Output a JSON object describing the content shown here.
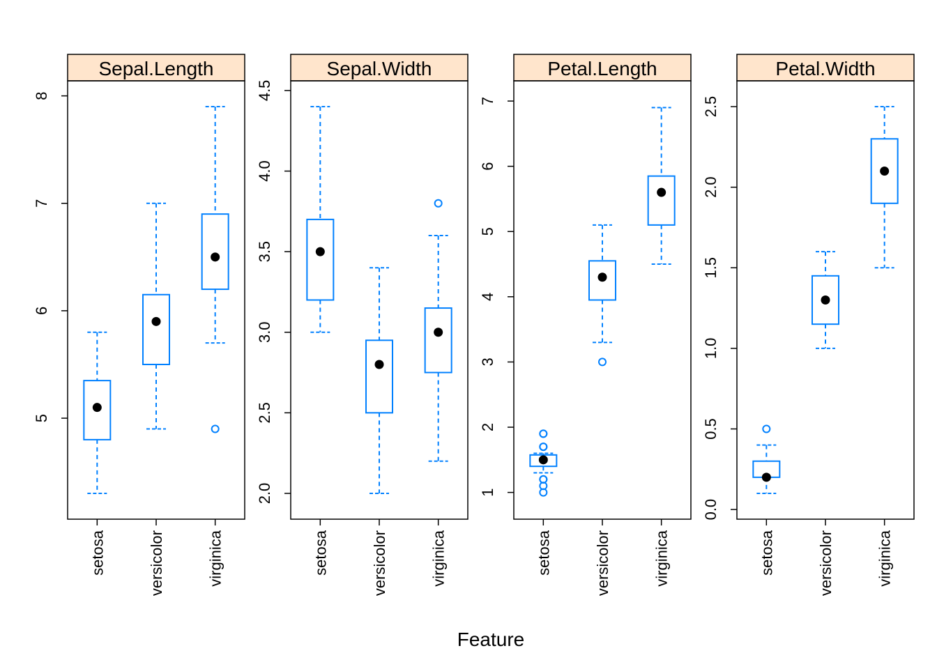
{
  "chart_data": {
    "type": "boxplot",
    "xlabel": "Feature",
    "categories": [
      "setosa",
      "versicolor",
      "virginica"
    ],
    "colors": {
      "box": "#0080ff",
      "strip_bg": "#ffe5cc",
      "median": "#000000"
    },
    "panels": [
      {
        "title": "Sepal.Length",
        "ylim": [
          4.06,
          8.14
        ],
        "yticks": [
          5,
          6,
          7,
          8
        ],
        "ytick_labels": [
          "5",
          "6",
          "7",
          "8"
        ],
        "boxes": [
          {
            "category": "setosa",
            "whisker_low": 4.3,
            "q1": 4.8,
            "median": 5.1,
            "q3": 5.35,
            "whisker_high": 5.8,
            "outliers": []
          },
          {
            "category": "versicolor",
            "whisker_low": 4.9,
            "q1": 5.5,
            "median": 5.9,
            "q3": 6.15,
            "whisker_high": 7.0,
            "outliers": []
          },
          {
            "category": "virginica",
            "whisker_low": 5.7,
            "q1": 6.2,
            "median": 6.5,
            "q3": 6.9,
            "whisker_high": 7.9,
            "outliers": [
              4.9
            ]
          }
        ]
      },
      {
        "title": "Sepal.Width",
        "ylim": [
          1.84,
          4.56
        ],
        "yticks": [
          2.0,
          2.5,
          3.0,
          3.5,
          4.0,
          4.5
        ],
        "ytick_labels": [
          "2.0",
          "2.5",
          "3.0",
          "3.5",
          "4.0",
          "4.5"
        ],
        "boxes": [
          {
            "category": "setosa",
            "whisker_low": 3.0,
            "q1": 3.2,
            "median": 3.5,
            "q3": 3.7,
            "whisker_high": 4.4,
            "outliers": []
          },
          {
            "category": "versicolor",
            "whisker_low": 2.0,
            "q1": 2.5,
            "median": 2.8,
            "q3": 2.95,
            "whisker_high": 3.4,
            "outliers": []
          },
          {
            "category": "virginica",
            "whisker_low": 2.2,
            "q1": 2.75,
            "median": 3.0,
            "q3": 3.15,
            "whisker_high": 3.6,
            "outliers": [
              3.8
            ]
          }
        ]
      },
      {
        "title": "Petal.Length",
        "ylim": [
          0.59,
          7.31
        ],
        "yticks": [
          1,
          2,
          3,
          4,
          5,
          6,
          7
        ],
        "ytick_labels": [
          "1",
          "2",
          "3",
          "4",
          "5",
          "6",
          "7"
        ],
        "boxes": [
          {
            "category": "setosa",
            "whisker_low": 1.3,
            "q1": 1.4,
            "median": 1.5,
            "q3": 1.575,
            "whisker_high": 1.6,
            "outliers": [
              1.0,
              1.1,
              1.2,
              1.2,
              1.7,
              1.7,
              1.9,
              1.9
            ]
          },
          {
            "category": "versicolor",
            "whisker_low": 3.3,
            "q1": 3.95,
            "median": 4.3,
            "q3": 4.55,
            "whisker_high": 5.1,
            "outliers": [
              3.0
            ]
          },
          {
            "category": "virginica",
            "whisker_low": 4.5,
            "q1": 5.1,
            "median": 5.6,
            "q3": 5.85,
            "whisker_high": 6.9,
            "outliers": []
          }
        ]
      },
      {
        "title": "Petal.Width",
        "ylim": [
          -0.06,
          2.66
        ],
        "yticks": [
          0.0,
          0.5,
          1.0,
          1.5,
          2.0,
          2.5
        ],
        "ytick_labels": [
          "0.0",
          "0.5",
          "1.0",
          "1.5",
          "2.0",
          "2.5"
        ],
        "boxes": [
          {
            "category": "setosa",
            "whisker_low": 0.1,
            "q1": 0.2,
            "median": 0.2,
            "q3": 0.3,
            "whisker_high": 0.4,
            "outliers": [
              0.5
            ]
          },
          {
            "category": "versicolor",
            "whisker_low": 1.0,
            "q1": 1.15,
            "median": 1.3,
            "q3": 1.45,
            "whisker_high": 1.6,
            "outliers": []
          },
          {
            "category": "virginica",
            "whisker_low": 1.5,
            "q1": 1.9,
            "median": 2.1,
            "q3": 2.3,
            "whisker_high": 2.5,
            "outliers": []
          }
        ]
      }
    ]
  }
}
